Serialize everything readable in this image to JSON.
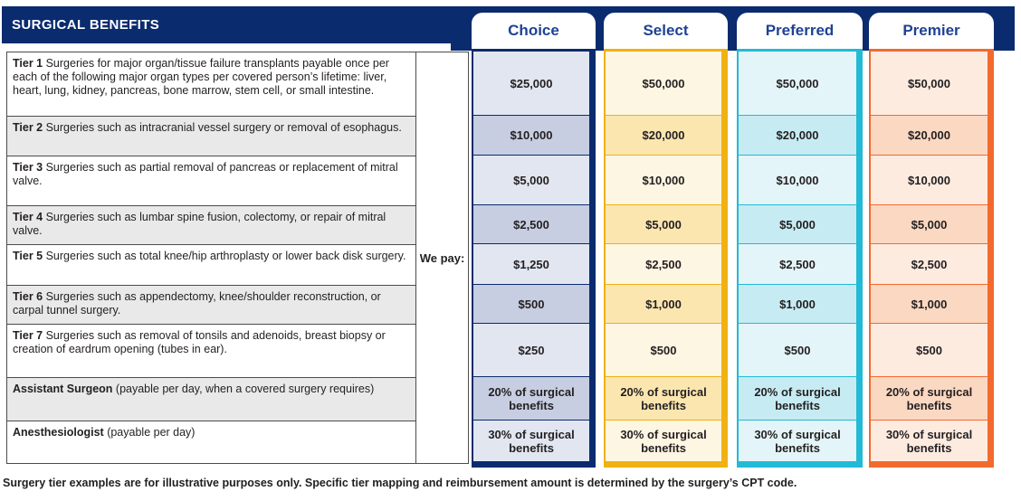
{
  "header": {
    "title": "SURGICAL BENEFITS",
    "we_pay": "We pay:"
  },
  "colors": {
    "navy_bar": "#0a2b6e",
    "tab_text_blue": "#1e4294",
    "table_border": "#4c4c4e",
    "gray_row": "#e9e9e9",
    "body_text": "#231f20"
  },
  "rows": [
    {
      "label": "Tier 1",
      "text": " Surgeries for major organ/tissue failure transplants payable once per each of the following major organ types per covered person’s lifetime: liver, heart, lung, kidney, pancreas, bone marrow, stem cell, or small intestine."
    },
    {
      "label": "Tier 2",
      "text": " Surgeries such as intracranial vessel surgery or removal of esophagus."
    },
    {
      "label": "Tier 3",
      "text": " Surgeries such as partial removal of pancreas or replacement of mitral valve."
    },
    {
      "label": "Tier 4",
      "text": " Surgeries such as lumbar spine fusion, colectomy, or repair of mitral valve."
    },
    {
      "label": "Tier 5",
      "text": " Surgeries such as total knee/hip arthroplasty or lower back disk surgery."
    },
    {
      "label": "Tier 6",
      "text": " Surgeries such as appendectomy, knee/shoulder reconstruction, or carpal tunnel surgery."
    },
    {
      "label": "Tier 7",
      "text": " Surgeries such as removal of tonsils and adenoids, breast biopsy or creation of eardrum opening (tubes in ear)."
    },
    {
      "label": "Assistant Surgeon",
      "text": " (payable per day, when a covered surgery requires)"
    },
    {
      "label": "Anesthesiologist",
      "text": " (payable per day)"
    }
  ],
  "plans": [
    {
      "name": "Choice",
      "border_color": "#0a2b6e",
      "light_cell": "#e1e6f1",
      "dark_cell": "#c7cee2",
      "values": [
        "$25,000",
        "$10,000",
        "$5,000",
        "$2,500",
        "$1,250",
        "$500",
        "$250",
        "20% of surgical benefits",
        "30% of surgical benefits"
      ]
    },
    {
      "name": "Select",
      "border_color": "#f0b112",
      "light_cell": "#fdf6e3",
      "dark_cell": "#fbe6b0",
      "values": [
        "$50,000",
        "$20,000",
        "$10,000",
        "$5,000",
        "$2,500",
        "$1,000",
        "$500",
        "20% of surgical benefits",
        "30% of surgical benefits"
      ]
    },
    {
      "name": "Preferred",
      "border_color": "#22bad5",
      "light_cell": "#e4f5f9",
      "dark_cell": "#c6ebf3",
      "values": [
        "$50,000",
        "$20,000",
        "$10,000",
        "$5,000",
        "$2,500",
        "$1,000",
        "$500",
        "20% of surgical benefits",
        "30% of surgical benefits"
      ]
    },
    {
      "name": "Premier",
      "border_color": "#f26a2e",
      "light_cell": "#fdebe0",
      "dark_cell": "#fbd8c2",
      "values": [
        "$50,000",
        "$20,000",
        "$10,000",
        "$5,000",
        "$2,500",
        "$1,000",
        "$500",
        "20% of surgical benefits",
        "30% of surgical benefits"
      ]
    }
  ],
  "footnote": "Surgery tier examples are for illustrative purposes only.  Specific tier mapping and reimbursement amount is determined by the surgery’s CPT code."
}
